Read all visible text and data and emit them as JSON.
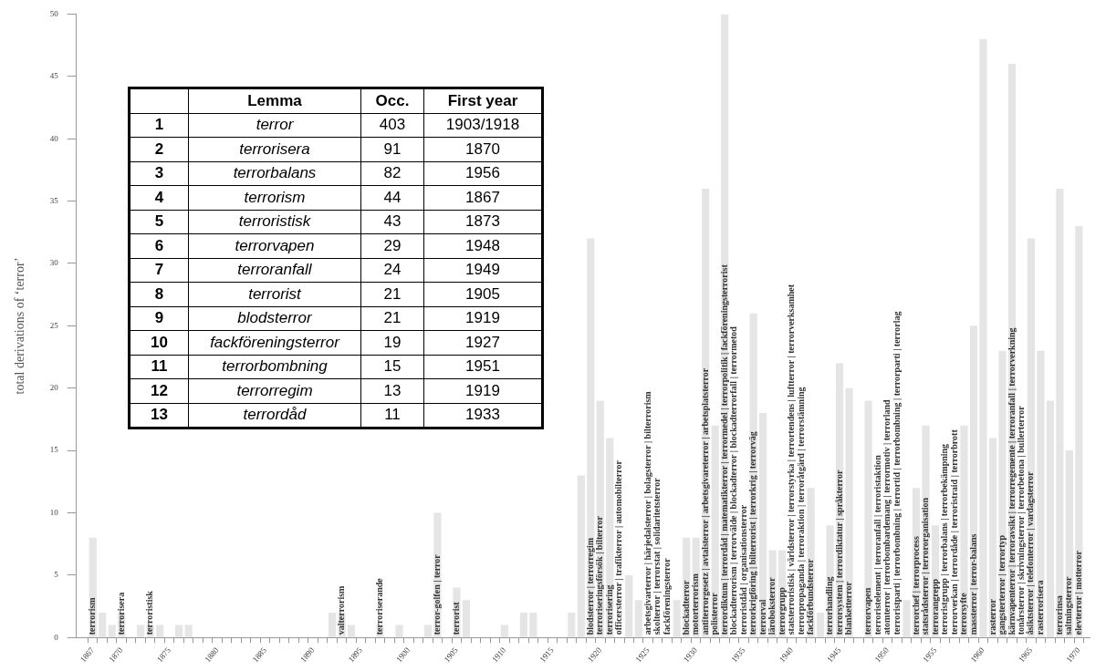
{
  "chart_data": {
    "type": "bar",
    "ylabel": "total derivations of ‘terror’",
    "color": "#e5e5e5",
    "grid": false,
    "x": [
      1867,
      1868,
      1869,
      1870,
      1872,
      1873,
      1874,
      1876,
      1877,
      1892,
      1893,
      1894,
      1897,
      1899,
      1902,
      1903,
      1905,
      1906,
      1910,
      1912,
      1913,
      1917,
      1918,
      1919,
      1920,
      1921,
      1922,
      1923,
      1924,
      1925,
      1926,
      1927,
      1928,
      1929,
      1930,
      1931,
      1932,
      1933,
      1934,
      1935,
      1936,
      1937,
      1938,
      1939,
      1940,
      1941,
      1942,
      1943,
      1944,
      1945,
      1946,
      1948,
      1949,
      1950,
      1951,
      1952,
      1953,
      1954,
      1955,
      1956,
      1957,
      1958,
      1959,
      1960,
      1961,
      1962,
      1963,
      1964,
      1965,
      1966,
      1967,
      1968,
      1969,
      1970
    ],
    "values": [
      8,
      2,
      1,
      2,
      1,
      1,
      1,
      1,
      1,
      2,
      2,
      1,
      1,
      1,
      1,
      10,
      4,
      3,
      1,
      2,
      2,
      2,
      13,
      32,
      19,
      16,
      null,
      5,
      3,
      null,
      null,
      null,
      3,
      8,
      8,
      36,
      17,
      50,
      null,
      null,
      26,
      18,
      7,
      7,
      null,
      null,
      12,
      2,
      9,
      22,
      20,
      19,
      null,
      null,
      null,
      3,
      12,
      17,
      9,
      null,
      null,
      17,
      25,
      48,
      16,
      23,
      46,
      null,
      32,
      23,
      19,
      36,
      15,
      33
    ],
    "value_labels": [
      "terrorism",
      null,
      null,
      "terrorisera",
      null,
      "terroristisk",
      null,
      null,
      null,
      null,
      "valterrorism",
      null,
      "terroriserande",
      null,
      null,
      "terror-golfen | terror",
      "terrorist",
      null,
      null,
      null,
      null,
      null,
      null,
      "blodsterror | terrorregim",
      "terroriseringsförsök | bilterror",
      "terrorisering",
      "officersterror | trafikterror | automobilterror",
      null,
      null,
      "arbetsgivarterror | härjedalsterror | bolagsterror | bilterrorism",
      "skolterror | terrorstat | solidaritetsterror",
      "fackföreningsterror",
      null,
      "blockadterror",
      "motorterrorism",
      "antiterrorgesetz | avtalsterror | arbetsgivareterror | arbetsplatsterror",
      "polisterror",
      "terrordiktum | terrordåd | matematikterror | terrormedel | terrorpolitik | fackföreningsterrorist",
      "blockadterrorism | terrorvälde | blockadterror | blockadterrorfall | terrormetod",
      "terroristdåd | organisationsterror",
      "terrorkrigföring | bilterrorist | terrorkrig | terrorväg",
      "terrorval",
      "läroboksterror",
      "terrorgrupp",
      "statsterroristisk | världsterror | terrorstyrka | terrortendens | luftterror | terrorverksamhet",
      "terrorpropaganda | terroraktion | terroråtgärd | terrorstämning",
      "fackförbundsterror",
      null,
      "terrorhandling",
      "terrorsystem | terrordiktatur | språkterror",
      "blanketterror",
      "terrorvapen",
      "terroristelement | terroranfall | terroristaktion",
      "atomterror | terrorbombardemang | terrormotiv | terrorland",
      "terroristparti | terrorbombning | terrortid | terrorbombning | terrorparti | terrorlag",
      null,
      "terrorchef | terrorprocess",
      "statsrådsterror | terrororganisation",
      "terrorangrepp",
      "terroristgrupp | terrorbalans | terrorbekämpning",
      "terrorverkan | terrordåde | terroristraid | terrorbrott",
      "terrorsyfte",
      "massterror | terror-balans",
      null,
      "rasterror",
      "gangsterterror | terrortyp",
      "kärnvapenterror | terroravsikt | terrorregemente | terroranfall | terrorverkning",
      "tonårsterror | skrivningsterror | terrorbetona | bullerterror",
      "åsiktsterror | telefonterror | vardagsterror",
      "rasterrorisera",
      null,
      "terrorinsa",
      "saltningsterror",
      "elevterror | motterror"
    ],
    "xlim": [
      1865.8,
      1970.6
    ],
    "xticks": [
      1867,
      {
        "value": 1868,
        "label": null
      },
      {
        "value": 1869,
        "label": null
      },
      1870,
      {
        "value": 1871,
        "label": null
      },
      {
        "value": 1872,
        "label": null
      },
      {
        "value": 1873,
        "label": null
      },
      {
        "value": 1874,
        "label": null
      },
      1875,
      {
        "value": 1876,
        "label": null
      },
      {
        "value": 1877,
        "label": null
      },
      {
        "value": 1878,
        "label": null
      },
      {
        "value": 1879,
        "label": null
      },
      1880,
      {
        "value": 1881,
        "label": null
      },
      {
        "value": 1882,
        "label": null
      },
      {
        "value": 1883,
        "label": null
      },
      {
        "value": 1884,
        "label": null
      },
      1885,
      {
        "value": 1886,
        "label": null
      },
      {
        "value": 1887,
        "label": null
      },
      {
        "value": 1888,
        "label": null
      },
      {
        "value": 1889,
        "label": null
      },
      1890,
      {
        "value": 1891,
        "label": null
      },
      {
        "value": 1892,
        "label": null
      },
      {
        "value": 1893,
        "label": null
      },
      {
        "value": 1894,
        "label": null
      },
      1895,
      {
        "value": 1896,
        "label": null
      },
      {
        "value": 1897,
        "label": null
      },
      {
        "value": 1898,
        "label": null
      },
      {
        "value": 1899,
        "label": null
      },
      1900,
      {
        "value": 1901,
        "label": null
      },
      {
        "value": 1902,
        "label": null
      },
      {
        "value": 1903,
        "label": null
      },
      {
        "value": 1904,
        "label": null
      },
      1905,
      {
        "value": 1906,
        "label": null
      },
      {
        "value": 1907,
        "label": null
      },
      {
        "value": 1908,
        "label": null
      },
      {
        "value": 1909,
        "label": null
      },
      1910,
      {
        "value": 1911,
        "label": null
      },
      {
        "value": 1912,
        "label": null
      },
      {
        "value": 1913,
        "label": null
      },
      {
        "value": 1914,
        "label": null
      },
      1915,
      {
        "value": 1916,
        "label": null
      },
      {
        "value": 1917,
        "label": null
      },
      {
        "value": 1918,
        "label": null
      },
      {
        "value": 1919,
        "label": null
      },
      1920,
      {
        "value": 1921,
        "label": null
      },
      {
        "value": 1922,
        "label": null
      },
      {
        "value": 1923,
        "label": null
      },
      {
        "value": 1924,
        "label": null
      },
      1925,
      {
        "value": 1926,
        "label": null
      },
      {
        "value": 1927,
        "label": null
      },
      {
        "value": 1928,
        "label": null
      },
      {
        "value": 1929,
        "label": null
      },
      1930,
      {
        "value": 1931,
        "label": null
      },
      {
        "value": 1932,
        "label": null
      },
      {
        "value": 1933,
        "label": null
      },
      {
        "value": 1934,
        "label": null
      },
      1935,
      {
        "value": 1936,
        "label": null
      },
      {
        "value": 1937,
        "label": null
      },
      {
        "value": 1938,
        "label": null
      },
      {
        "value": 1939,
        "label": null
      },
      1940,
      {
        "value": 1941,
        "label": null
      },
      {
        "value": 1942,
        "label": null
      },
      {
        "value": 1943,
        "label": null
      },
      {
        "value": 1944,
        "label": null
      },
      1945,
      {
        "value": 1946,
        "label": null
      },
      {
        "value": 1947,
        "label": null
      },
      {
        "value": 1948,
        "label": null
      },
      {
        "value": 1949,
        "label": null
      },
      1950,
      {
        "value": 1951,
        "label": null
      },
      {
        "value": 1952,
        "label": null
      },
      {
        "value": 1953,
        "label": null
      },
      {
        "value": 1954,
        "label": null
      },
      1955,
      {
        "value": 1956,
        "label": null
      },
      {
        "value": 1957,
        "label": null
      },
      {
        "value": 1958,
        "label": null
      },
      {
        "value": 1959,
        "label": null
      },
      1960,
      {
        "value": 1961,
        "label": null
      },
      {
        "value": 1962,
        "label": null
      },
      {
        "value": 1963,
        "label": null
      },
      {
        "value": 1964,
        "label": null
      },
      1965,
      {
        "value": 1966,
        "label": null
      },
      {
        "value": 1967,
        "label": null
      },
      {
        "value": 1968,
        "label": null
      },
      {
        "value": 1969,
        "label": null
      },
      1970
    ],
    "ylim": [
      0,
      50
    ],
    "yticks": [
      0,
      5,
      10,
      15,
      20,
      25,
      30,
      35,
      40,
      45,
      50
    ],
    "annotations": [
      "Lemma",
      "Occ.",
      "First year",
      "1",
      "terror",
      "403",
      "1903/1918",
      "2",
      "terrorisera",
      "91",
      "1870",
      "3",
      "terrorbalans",
      "82",
      "1956",
      "4",
      "terrorism",
      "44",
      "1867",
      "5",
      "terroristisk",
      "43",
      "1873",
      "6",
      "terrorvapen",
      "29",
      "1948",
      "7",
      "terroranfall",
      "24",
      "1949",
      "8",
      "terrorist",
      "21",
      "1905",
      "9",
      "blodsterror",
      "21",
      "1919",
      "10",
      "fackföreningsterror",
      "19",
      "1927",
      "11",
      "terrorbombning",
      "15",
      "1951",
      "12",
      "terrorregim",
      "13",
      "1919",
      "13",
      "terrordåd",
      "11",
      "1933"
    ]
  }
}
